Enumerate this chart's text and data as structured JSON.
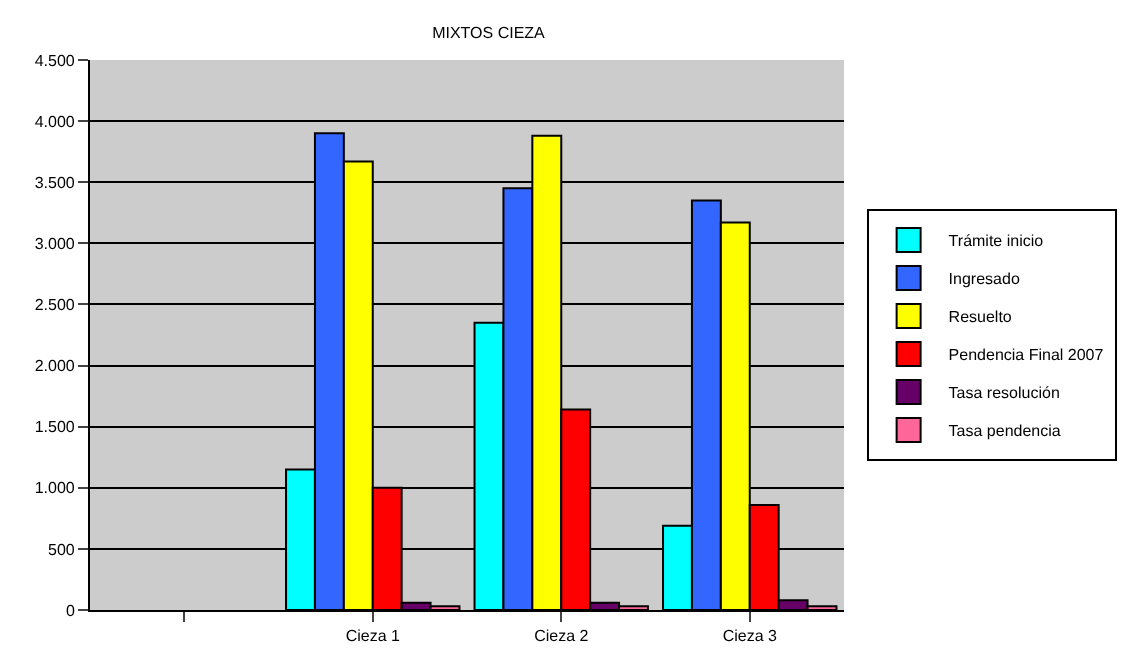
{
  "chart_data": {
    "type": "bar",
    "title": "MIXTOS CIEZA",
    "categories": [
      null,
      "Cieza 1",
      "Cieza 2",
      "Cieza 3"
    ],
    "series": [
      {
        "name": "Trámite inicio",
        "color": "#00ffff",
        "values": [
          null,
          1150,
          2350,
          690
        ]
      },
      {
        "name": "Ingresado",
        "color": "#3366ff",
        "values": [
          null,
          3900,
          3450,
          3350
        ]
      },
      {
        "name": "Resuelto",
        "color": "#ffff00",
        "values": [
          null,
          3670,
          3880,
          3170
        ]
      },
      {
        "name": "Pendencia Final 2007",
        "color": "#ff0000",
        "values": [
          null,
          1000,
          1640,
          860
        ]
      },
      {
        "name": "Tasa resolución",
        "color": "#660066",
        "values": [
          null,
          60,
          60,
          80
        ]
      },
      {
        "name": "Tasa pendencia",
        "color": "#ff6699",
        "values": [
          null,
          30,
          30,
          30
        ]
      }
    ],
    "ylim": [
      0,
      4500
    ],
    "yticks": [
      0,
      500,
      {
        "value": 1000,
        "label": "1.000"
      },
      {
        "value": 1500,
        "label": "1.500"
      },
      {
        "value": 2000,
        "label": "2.000"
      },
      {
        "value": 2500,
        "label": "2.500"
      },
      {
        "value": 3000,
        "label": "3.000"
      },
      {
        "value": 3500,
        "label": "3.500"
      },
      {
        "value": 4000,
        "label": "4.000"
      },
      {
        "value": 4500,
        "label": "4.500"
      }
    ],
    "grid": "y",
    "legend": "right"
  }
}
